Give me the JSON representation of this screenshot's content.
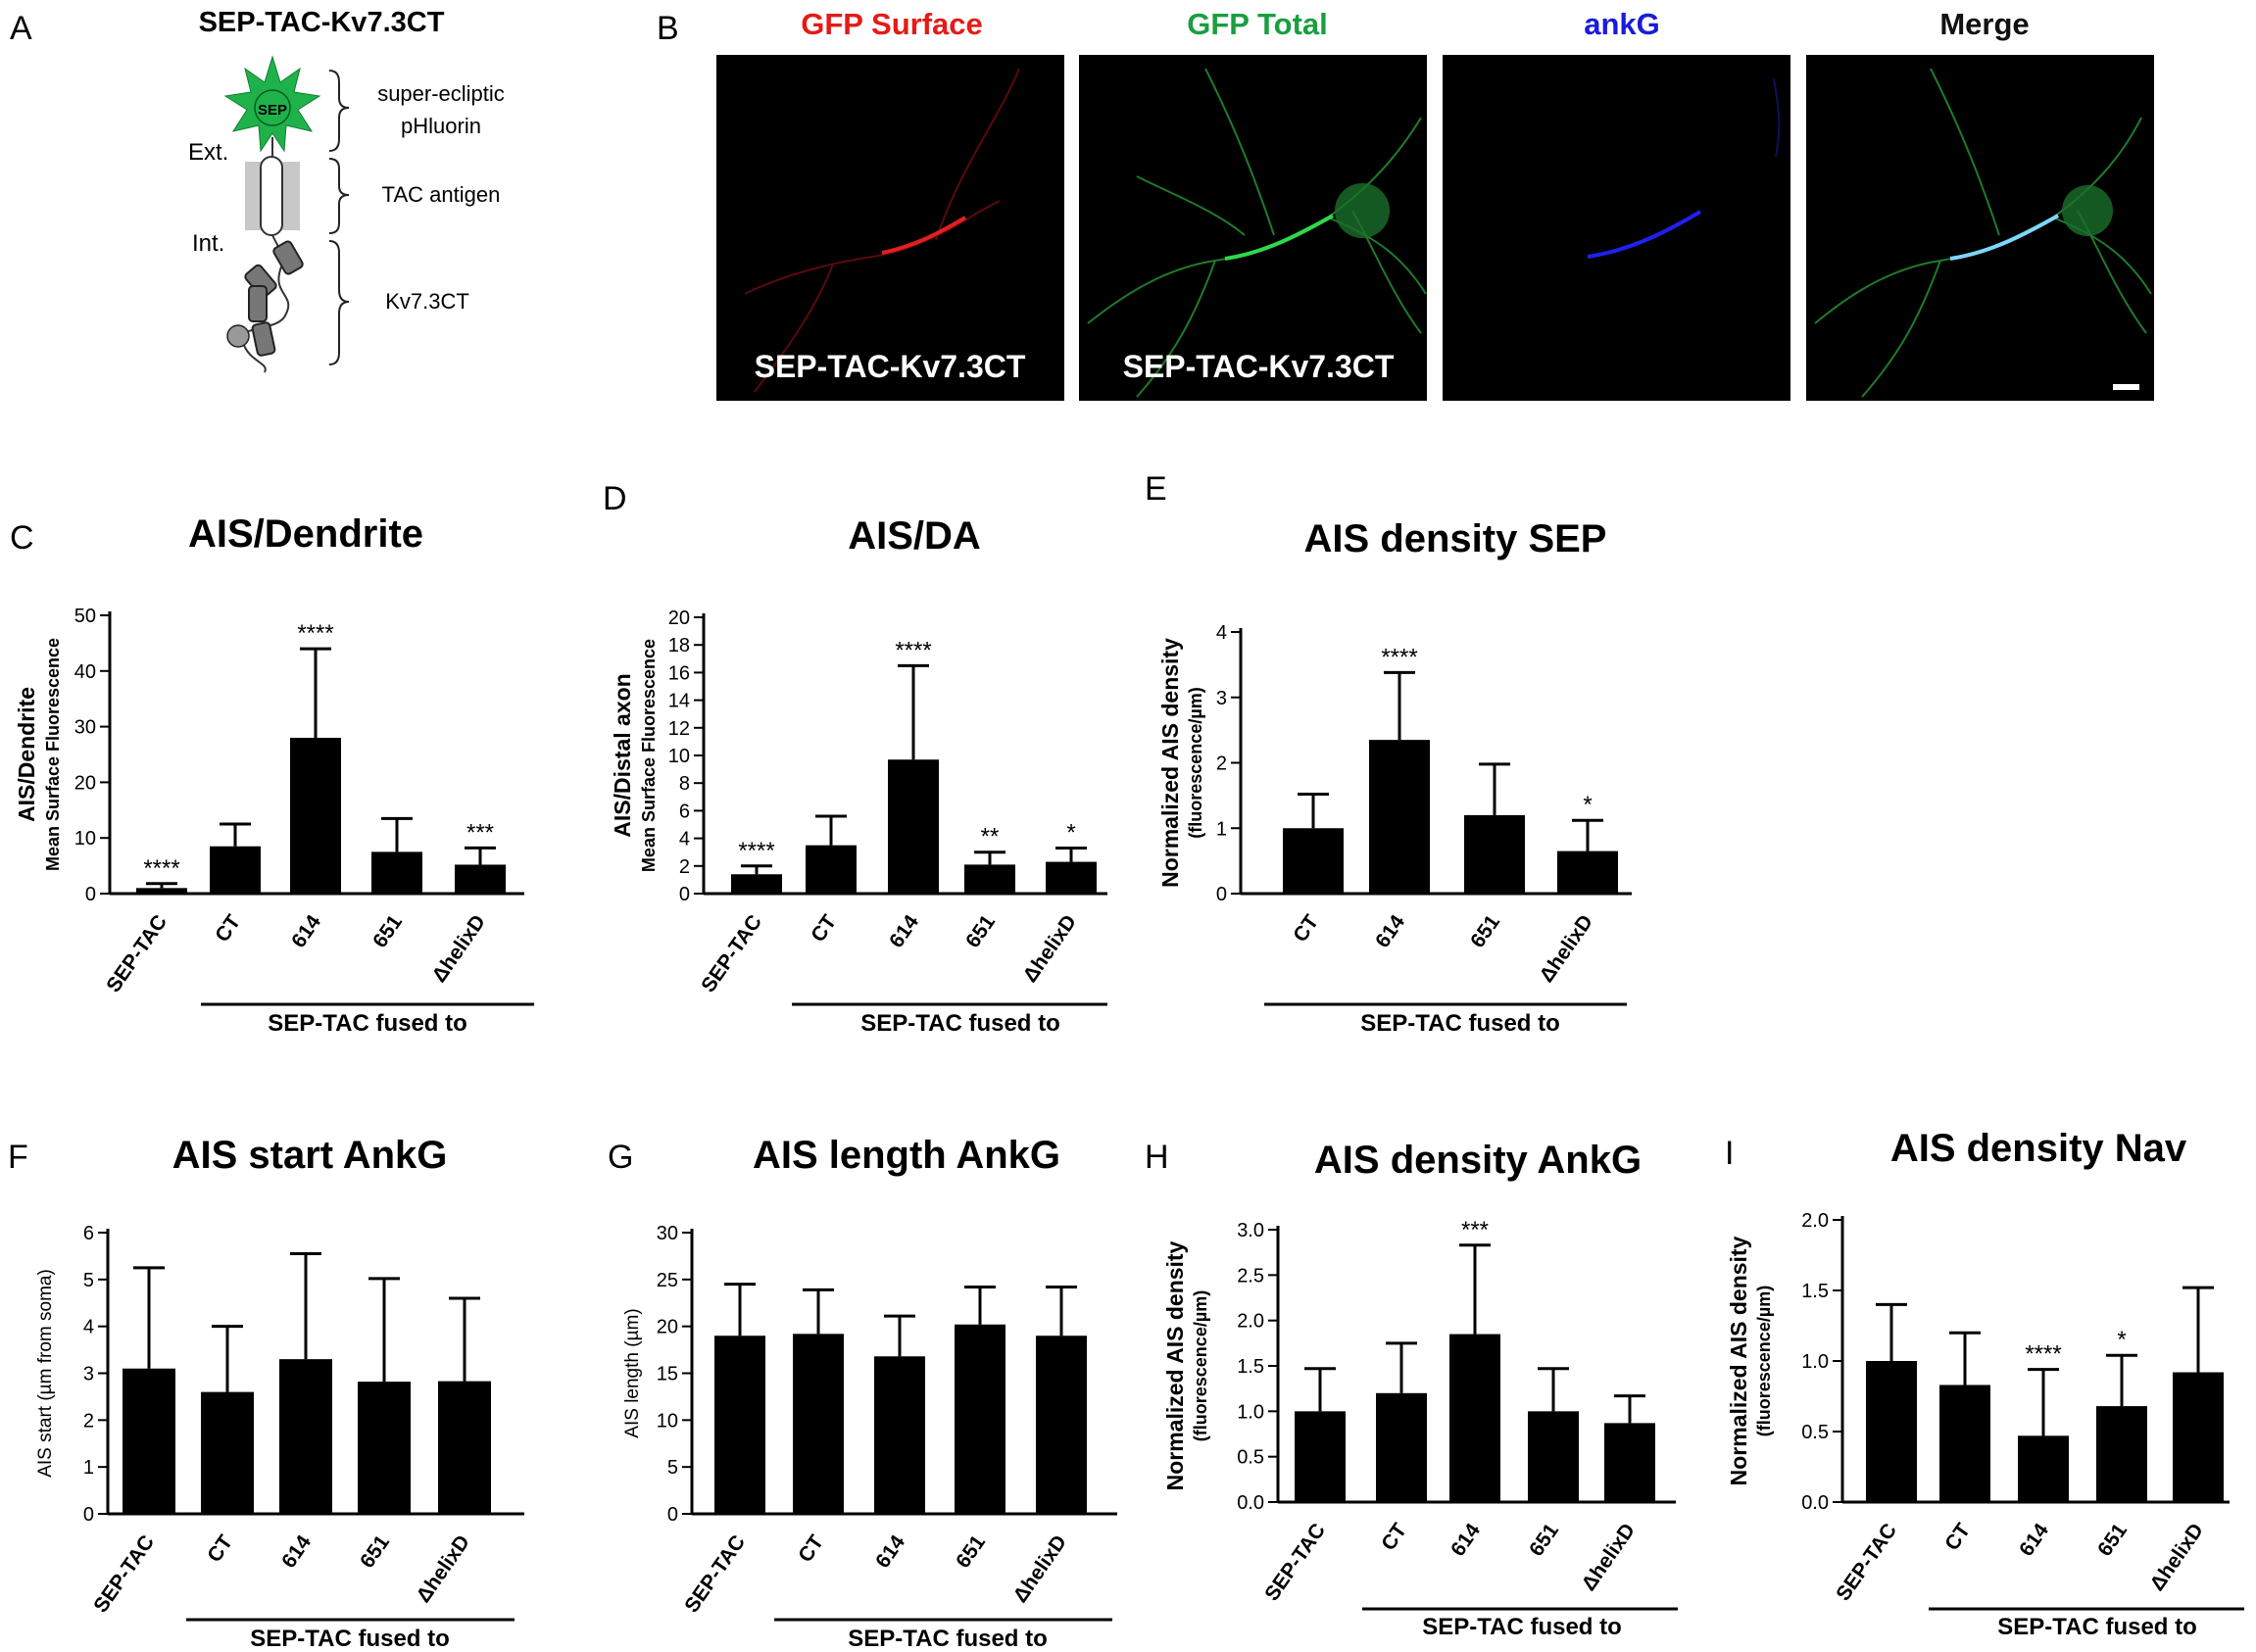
{
  "panel_letters": [
    "A",
    "B",
    "C",
    "D",
    "E",
    "F",
    "G",
    "H",
    "I"
  ],
  "schematic": {
    "title": "SEP-TAC-Kv7.3CT",
    "sep_label": "SEP",
    "ext_label": "Ext.",
    "int_label": "Int.",
    "label_pHluorin_line1": "super-ecliptic",
    "label_pHluorin_line2": "pHluorin",
    "label_tac": "TAC antigen",
    "label_kv": "Kv7.3CT"
  },
  "micrographs": {
    "headers": [
      "GFP Surface",
      "GFP Total",
      "ankG",
      "Merge"
    ],
    "header_colors": [
      "#e41b17",
      "#1a9e3f",
      "#1a1adb",
      "#111111"
    ],
    "overlay_labels": [
      "SEP-TAC-Kv7.3CT",
      "SEP-TAC-Kv7.3CT"
    ]
  },
  "group_label": "SEP-TAC fused to",
  "chart_data": [
    {
      "id": "C",
      "type": "bar",
      "title": "AIS/Dendrite",
      "ylabel_main": "AIS/Dendrite",
      "ylabel_sub": "Mean Surface Fluorescence",
      "categories": [
        "SEP-TAC",
        "CT",
        "614",
        "651",
        "ΔhelixD"
      ],
      "values": [
        1,
        8.5,
        28,
        7.5,
        5.2
      ],
      "errors": [
        0.8,
        4,
        16,
        6,
        3
      ],
      "stars": [
        "****",
        "",
        "****",
        "",
        "***"
      ],
      "ylim": [
        0,
        50
      ],
      "yticks": [
        "0",
        "10",
        "20",
        "30",
        "40",
        "50"
      ]
    },
    {
      "id": "D",
      "type": "bar",
      "title": "AIS/DA",
      "ylabel_main": "AIS/Distal axon",
      "ylabel_sub": "Mean Surface Fluorescence",
      "categories": [
        "SEP-TAC",
        "CT",
        "614",
        "651",
        "ΔhelixD"
      ],
      "values": [
        1.4,
        3.5,
        9.7,
        2.1,
        2.3
      ],
      "errors": [
        0.6,
        2.1,
        6.8,
        0.9,
        1
      ],
      "stars": [
        "****",
        "",
        "****",
        "**",
        "*"
      ],
      "ylim": [
        0,
        20
      ],
      "yticks": [
        "0",
        "2",
        "4",
        "6",
        "8",
        "10",
        "12",
        "14",
        "16",
        "18",
        "20"
      ]
    },
    {
      "id": "E",
      "type": "bar",
      "title": "AIS density SEP",
      "ylabel_main": "Normalized AIS density",
      "ylabel_sub": "(fluorescence/µm)",
      "categories": [
        "CT",
        "614",
        "651",
        "ΔhelixD"
      ],
      "values": [
        1,
        2.35,
        1.2,
        0.65
      ],
      "errors": [
        0.52,
        1.03,
        0.78,
        0.47
      ],
      "stars": [
        "",
        "****",
        "",
        "*"
      ],
      "ylim": [
        0,
        4
      ],
      "yticks": [
        "0",
        "1",
        "2",
        "3",
        "4"
      ]
    },
    {
      "id": "F",
      "type": "bar",
      "title": "AIS start AnkG",
      "ylabel_main": "AIS start (µm from soma)",
      "ylabel_sub": "",
      "categories": [
        "SEP-TAC",
        "CT",
        "614",
        "651",
        "ΔhelixD"
      ],
      "values": [
        3.1,
        2.6,
        3.3,
        2.82,
        2.83
      ],
      "errors": [
        2.15,
        1.4,
        2.25,
        2.2,
        1.77
      ],
      "stars": [
        "",
        "",
        "",
        "",
        ""
      ],
      "ylim": [
        0,
        6
      ],
      "yticks": [
        "0",
        "1",
        "2",
        "3",
        "4",
        "5",
        "6"
      ]
    },
    {
      "id": "G",
      "type": "bar",
      "title": "AIS length AnkG",
      "ylabel_main": "AIS length (µm)",
      "ylabel_sub": "",
      "categories": [
        "SEP-TAC",
        "CT",
        "614",
        "651",
        "ΔhelixD"
      ],
      "values": [
        19,
        19.2,
        16.8,
        20.2,
        19
      ],
      "errors": [
        5.5,
        4.7,
        4.3,
        4,
        5.2
      ],
      "stars": [
        "",
        "",
        "",
        "",
        ""
      ],
      "ylim": [
        0,
        30
      ],
      "yticks": [
        "0",
        "5",
        "10",
        "15",
        "20",
        "25",
        "30"
      ]
    },
    {
      "id": "H",
      "type": "bar",
      "title": "AIS density AnkG",
      "ylabel_main": "Normalized AIS density",
      "ylabel_sub": "(fluorescence/µm)",
      "categories": [
        "SEP-TAC",
        "CT",
        "614",
        "651",
        "ΔhelixD"
      ],
      "values": [
        1,
        1.2,
        1.85,
        1,
        0.87
      ],
      "errors": [
        0.47,
        0.55,
        0.98,
        0.47,
        0.3
      ],
      "stars": [
        "",
        "",
        "***",
        "",
        ""
      ],
      "ylim": [
        0,
        3
      ],
      "yticks": [
        "0.0",
        "0.5",
        "1.0",
        "1.5",
        "2.0",
        "2.5",
        "3.0"
      ]
    },
    {
      "id": "I",
      "type": "bar",
      "title": "AIS density Nav",
      "ylabel_main": "Normalized AIS density",
      "ylabel_sub": "(fluorescence/µm)",
      "categories": [
        "SEP-TAC",
        "CT",
        "614",
        "651",
        "ΔhelixD"
      ],
      "values": [
        1,
        0.83,
        0.47,
        0.68,
        0.92
      ],
      "errors": [
        0.4,
        0.37,
        0.47,
        0.36,
        0.6
      ],
      "stars": [
        "",
        "",
        "****",
        "*",
        ""
      ],
      "ylim": [
        0,
        2
      ],
      "yticks": [
        "0.0",
        "0.5",
        "1.0",
        "1.5",
        "2.0"
      ]
    }
  ]
}
